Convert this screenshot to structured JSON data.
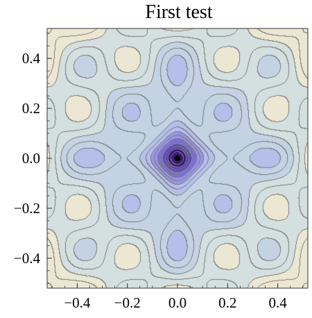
{
  "chart_data": {
    "type": "heatmap",
    "subtype": "contour",
    "title": "First test",
    "xlabel": "",
    "ylabel": "",
    "xlim": [
      -0.52,
      0.52
    ],
    "ylim": [
      -0.52,
      0.52
    ],
    "x_ticks": [
      -0.4,
      -0.2,
      0.0,
      0.2,
      0.4
    ],
    "y_ticks": [
      -0.4,
      -0.2,
      0.0,
      0.2,
      0.4
    ],
    "x_tick_labels": [
      "−0.4",
      "−0.2",
      "0.0",
      "0.2",
      "0.4"
    ],
    "y_tick_labels": [
      "−0.4",
      "−0.2",
      "0.0",
      "0.2",
      "0.4"
    ],
    "grid": false,
    "colormap": [
      "#3a1a78",
      "#5a44b8",
      "#7d6fe0",
      "#9a95ea",
      "#b5bfea",
      "#c3d3e4",
      "#d4dfe0",
      "#ece7d2"
    ],
    "contour_line_color": "#7c7c7c",
    "marked_points": [
      {
        "x": 0.0,
        "y": 0.0,
        "color": "#000000"
      }
    ],
    "features": {
      "global_minimum": {
        "x": 0.0,
        "y": 0.0
      },
      "local_extrema": [
        {
          "x": -0.19,
          "y": 0.19
        },
        {
          "x": 0.19,
          "y": 0.19
        },
        {
          "x": -0.19,
          "y": -0.19
        },
        {
          "x": 0.19,
          "y": -0.19
        }
      ],
      "high_regions": [
        "corners",
        "edge midpoints"
      ]
    }
  }
}
